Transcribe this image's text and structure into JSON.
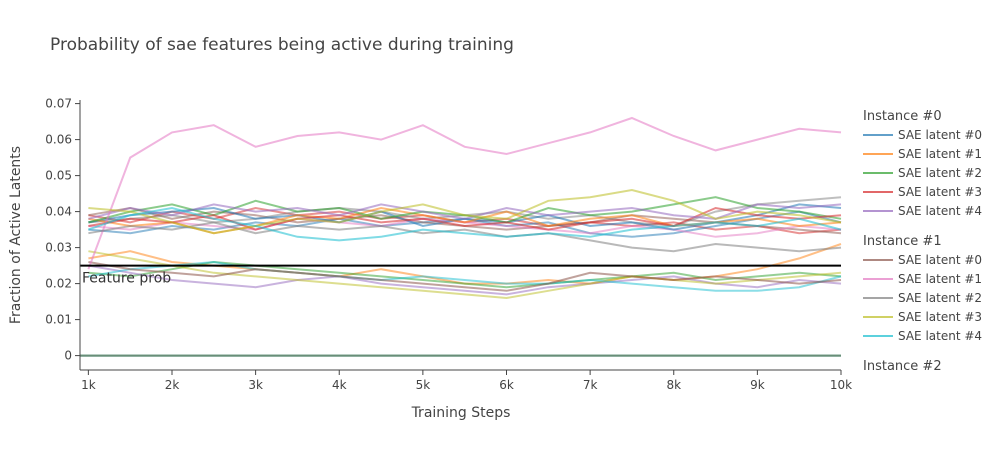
{
  "chart_data": {
    "type": "line",
    "title": "Probability of sae features being active during training",
    "xlabel": "Training Steps",
    "ylabel": "Fraction of Active Latents",
    "xlim": [
      900,
      10000
    ],
    "ylim": [
      -0.004,
      0.071
    ],
    "x_ticks": [
      1000,
      2000,
      3000,
      4000,
      5000,
      6000,
      7000,
      8000,
      9000,
      10000
    ],
    "x_tick_labels": [
      "1k",
      "2k",
      "3k",
      "4k",
      "5k",
      "6k",
      "7k",
      "8k",
      "9k",
      "10k"
    ],
    "y_ticks": [
      0,
      0.01,
      0.02,
      0.03,
      0.04,
      0.05,
      0.06,
      0.07
    ],
    "y_tick_labels": [
      "0",
      "0.01",
      "0.02",
      "0.03",
      "0.04",
      "0.05",
      "0.06",
      "0.07"
    ],
    "grid": false,
    "legend_position": "right",
    "x": [
      1000,
      1500,
      2000,
      2500,
      3000,
      3500,
      4000,
      4500,
      5000,
      5500,
      6000,
      6500,
      7000,
      7500,
      8000,
      8500,
      9000,
      9500,
      10000
    ],
    "reference_line": {
      "label": "Feature prob",
      "y": 0.025,
      "color": "#000000"
    },
    "groups": [
      {
        "title": "Instance #0",
        "series": [
          {
            "name": "SAE latent #0",
            "color": "#1f77b4",
            "values": [
              0.037,
              0.039,
              0.04,
              0.041,
              0.038,
              0.039,
              0.037,
              0.04,
              0.036,
              0.038,
              0.037,
              0.039,
              0.036,
              0.037,
              0.035,
              0.037,
              0.039,
              0.042,
              0.041
            ]
          },
          {
            "name": "SAE latent #1",
            "color": "#ff7f0e",
            "values": [
              0.038,
              0.036,
              0.037,
              0.034,
              0.036,
              0.039,
              0.038,
              0.041,
              0.039,
              0.037,
              0.04,
              0.036,
              0.038,
              0.039,
              0.036,
              0.037,
              0.038,
              0.036,
              0.037
            ]
          },
          {
            "name": "SAE latent #2",
            "color": "#2ca02c",
            "values": [
              0.037,
              0.04,
              0.042,
              0.039,
              0.043,
              0.04,
              0.041,
              0.038,
              0.04,
              0.039,
              0.037,
              0.041,
              0.039,
              0.04,
              0.042,
              0.044,
              0.041,
              0.04,
              0.038
            ]
          },
          {
            "name": "SAE latent #3",
            "color": "#d62728",
            "values": [
              0.036,
              0.038,
              0.037,
              0.039,
              0.035,
              0.038,
              0.039,
              0.037,
              0.038,
              0.036,
              0.037,
              0.035,
              0.037,
              0.038,
              0.036,
              0.041,
              0.039,
              0.038,
              0.039
            ]
          },
          {
            "name": "SAE latent #4",
            "color": "#9467bd",
            "values": [
              0.038,
              0.041,
              0.039,
              0.042,
              0.04,
              0.041,
              0.039,
              0.042,
              0.04,
              0.038,
              0.041,
              0.039,
              0.04,
              0.041,
              0.039,
              0.038,
              0.042,
              0.041,
              0.042
            ]
          }
        ]
      },
      {
        "title": "Instance #1",
        "series": [
          {
            "name": "SAE latent #0",
            "color": "#8c564b",
            "values": [
              0.026,
              0.024,
              0.023,
              0.022,
              0.024,
              0.023,
              0.022,
              0.021,
              0.02,
              0.019,
              0.018,
              0.02,
              0.023,
              0.022,
              0.021,
              0.022,
              0.021,
              0.02,
              0.021
            ]
          },
          {
            "name": "SAE latent #1",
            "color": "#e377c2",
            "values": [
              0.024,
              0.055,
              0.062,
              0.064,
              0.058,
              0.061,
              0.062,
              0.06,
              0.064,
              0.058,
              0.056,
              0.059,
              0.062,
              0.066,
              0.061,
              0.057,
              0.06,
              0.063,
              0.062
            ]
          },
          {
            "name": "SAE latent #2",
            "color": "#7f7f7f",
            "values": [
              0.034,
              0.036,
              0.035,
              0.037,
              0.034,
              0.036,
              0.035,
              0.036,
              0.034,
              0.035,
              0.033,
              0.034,
              0.032,
              0.03,
              0.029,
              0.031,
              0.03,
              0.029,
              0.03
            ]
          },
          {
            "name": "SAE latent #3",
            "color": "#bcbd22",
            "values": [
              0.041,
              0.04,
              0.037,
              0.034,
              0.036,
              0.038,
              0.037,
              0.04,
              0.042,
              0.039,
              0.038,
              0.043,
              0.044,
              0.046,
              0.043,
              0.038,
              0.04,
              0.039,
              0.037
            ]
          },
          {
            "name": "SAE latent #4",
            "color": "#17becf",
            "values": [
              0.035,
              0.039,
              0.041,
              0.038,
              0.036,
              0.033,
              0.032,
              0.033,
              0.035,
              0.034,
              0.033,
              0.034,
              0.033,
              0.035,
              0.036,
              0.037,
              0.036,
              0.038,
              0.035
            ]
          }
        ]
      },
      {
        "title": "Instance #2",
        "series": []
      }
    ],
    "extra_lines": [
      {
        "color": "#ff7f0e",
        "values": [
          0.027,
          0.029,
          0.026,
          0.025,
          0.024,
          0.023,
          0.022,
          0.024,
          0.022,
          0.02,
          0.02,
          0.021,
          0.02,
          0.022,
          0.021,
          0.022,
          0.024,
          0.027,
          0.031
        ]
      },
      {
        "color": "#2ca02c",
        "values": [
          0.023,
          0.022,
          0.024,
          0.026,
          0.025,
          0.024,
          0.023,
          0.022,
          0.021,
          0.02,
          0.019,
          0.02,
          0.021,
          0.022,
          0.023,
          0.021,
          0.022,
          0.023,
          0.022
        ]
      },
      {
        "color": "#9467bd",
        "values": [
          0.025,
          0.023,
          0.021,
          0.02,
          0.019,
          0.021,
          0.022,
          0.02,
          0.019,
          0.018,
          0.017,
          0.019,
          0.02,
          0.021,
          0.022,
          0.02,
          0.019,
          0.021,
          0.02
        ]
      },
      {
        "color": "#bcbd22",
        "values": [
          0.029,
          0.027,
          0.025,
          0.023,
          0.022,
          0.021,
          0.02,
          0.019,
          0.018,
          0.017,
          0.016,
          0.018,
          0.02,
          0.022,
          0.021,
          0.02,
          0.021,
          0.022,
          0.023
        ]
      },
      {
        "color": "#17becf",
        "values": [
          0.022,
          0.024,
          0.025,
          0.026,
          0.024,
          0.023,
          0.022,
          0.021,
          0.022,
          0.021,
          0.02,
          0.02,
          0.021,
          0.02,
          0.019,
          0.018,
          0.018,
          0.019,
          0.022
        ]
      },
      {
        "color": "#d62728",
        "values": [
          0.039,
          0.037,
          0.04,
          0.038,
          0.041,
          0.039,
          0.04,
          0.038,
          0.039,
          0.037,
          0.038,
          0.036,
          0.037,
          0.036,
          0.037,
          0.035,
          0.036,
          0.034,
          0.035
        ]
      },
      {
        "color": "#1f77b4",
        "values": [
          0.035,
          0.034,
          0.036,
          0.035,
          0.037,
          0.036,
          0.038,
          0.036,
          0.037,
          0.038,
          0.036,
          0.037,
          0.034,
          0.033,
          0.034,
          0.036,
          0.038,
          0.04,
          0.037
        ]
      },
      {
        "color": "#8c564b",
        "values": [
          0.039,
          0.041,
          0.038,
          0.04,
          0.039,
          0.037,
          0.038,
          0.039,
          0.037,
          0.036,
          0.035,
          0.036,
          0.037,
          0.039,
          0.038,
          0.037,
          0.036,
          0.035,
          0.034
        ]
      },
      {
        "color": "#7f7f7f",
        "values": [
          0.037,
          0.038,
          0.039,
          0.037,
          0.038,
          0.04,
          0.041,
          0.04,
          0.038,
          0.039,
          0.04,
          0.038,
          0.039,
          0.037,
          0.036,
          0.04,
          0.042,
          0.043,
          0.044
        ]
      },
      {
        "color": "#e377c2",
        "values": [
          0.036,
          0.035,
          0.037,
          0.036,
          0.035,
          0.038,
          0.037,
          0.036,
          0.038,
          0.037,
          0.036,
          0.035,
          0.034,
          0.036,
          0.035,
          0.033,
          0.034,
          0.036,
          0.035
        ]
      }
    ],
    "zero_lines": [
      {
        "color": "#1f77b4",
        "value": 0
      },
      {
        "color": "#2ca02c",
        "value": 0
      },
      {
        "color": "#7f7f7f",
        "value": 0
      }
    ]
  }
}
